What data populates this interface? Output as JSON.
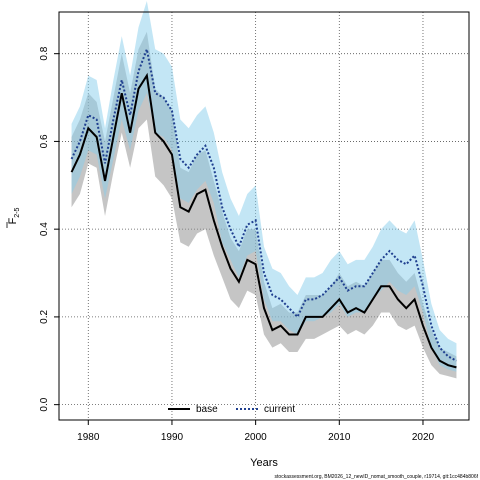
{
  "chart_data": {
    "type": "line",
    "xlabel": "Years",
    "ylabel_main": "F",
    "ylabel_sub": "2-5",
    "xlim": [
      1976.5,
      2025.5
    ],
    "ylim": [
      -0.035,
      0.895
    ],
    "xticks": [
      1980,
      1990,
      2000,
      2010,
      2020
    ],
    "yticks": [
      0.0,
      0.2,
      0.4,
      0.6,
      0.8
    ],
    "ytick_labels": [
      "0.0",
      "0.2",
      "0.4",
      "0.6",
      "0.8"
    ],
    "grid": true,
    "legend_position": "bottom",
    "years": [
      1978,
      1979,
      1980,
      1981,
      1982,
      1983,
      1984,
      1985,
      1986,
      1987,
      1988,
      1989,
      1990,
      1991,
      1992,
      1993,
      1994,
      1995,
      1996,
      1997,
      1998,
      1999,
      2000,
      2001,
      2002,
      2003,
      2004,
      2005,
      2006,
      2007,
      2008,
      2009,
      2010,
      2011,
      2012,
      2013,
      2014,
      2015,
      2016,
      2017,
      2018,
      2019,
      2020,
      2021,
      2022,
      2023,
      2024
    ],
    "series": [
      {
        "name": "base",
        "color": "#000000",
        "band_color": "#8c8c8c",
        "values": [
          0.53,
          0.57,
          0.63,
          0.61,
          0.51,
          0.61,
          0.71,
          0.62,
          0.72,
          0.75,
          0.62,
          0.6,
          0.57,
          0.45,
          0.44,
          0.48,
          0.49,
          0.42,
          0.36,
          0.31,
          0.28,
          0.33,
          0.32,
          0.22,
          0.17,
          0.18,
          0.16,
          0.16,
          0.2,
          0.2,
          0.2,
          0.22,
          0.24,
          0.21,
          0.22,
          0.21,
          0.24,
          0.27,
          0.27,
          0.24,
          0.22,
          0.24,
          0.18,
          0.13,
          0.1,
          0.09,
          0.085
        ],
        "lower": [
          0.45,
          0.48,
          0.55,
          0.54,
          0.43,
          0.53,
          0.62,
          0.54,
          0.63,
          0.65,
          0.52,
          0.5,
          0.47,
          0.37,
          0.36,
          0.39,
          0.4,
          0.34,
          0.29,
          0.24,
          0.22,
          0.26,
          0.25,
          0.16,
          0.13,
          0.14,
          0.12,
          0.12,
          0.15,
          0.15,
          0.16,
          0.17,
          0.18,
          0.16,
          0.17,
          0.16,
          0.18,
          0.21,
          0.21,
          0.18,
          0.17,
          0.18,
          0.13,
          0.09,
          0.07,
          0.065,
          0.06
        ],
        "upper": [
          0.61,
          0.65,
          0.71,
          0.69,
          0.6,
          0.7,
          0.8,
          0.71,
          0.81,
          0.85,
          0.72,
          0.7,
          0.67,
          0.54,
          0.53,
          0.57,
          0.58,
          0.51,
          0.44,
          0.38,
          0.35,
          0.4,
          0.4,
          0.28,
          0.22,
          0.23,
          0.21,
          0.21,
          0.25,
          0.25,
          0.25,
          0.27,
          0.3,
          0.27,
          0.28,
          0.27,
          0.3,
          0.33,
          0.33,
          0.3,
          0.28,
          0.3,
          0.23,
          0.17,
          0.13,
          0.12,
          0.11
        ]
      },
      {
        "name": "current",
        "color": "#1f3f8f",
        "band_color": "#87ceeb",
        "values": [
          0.56,
          0.6,
          0.66,
          0.65,
          0.55,
          0.65,
          0.74,
          0.66,
          0.76,
          0.81,
          0.71,
          0.7,
          0.67,
          0.56,
          0.54,
          0.57,
          0.59,
          0.54,
          0.45,
          0.4,
          0.36,
          0.41,
          0.42,
          0.3,
          0.25,
          0.24,
          0.22,
          0.2,
          0.24,
          0.24,
          0.25,
          0.27,
          0.29,
          0.26,
          0.27,
          0.27,
          0.3,
          0.33,
          0.35,
          0.33,
          0.32,
          0.34,
          0.27,
          0.18,
          0.13,
          0.11,
          0.1
        ],
        "lower": [
          0.48,
          0.52,
          0.58,
          0.57,
          0.47,
          0.56,
          0.65,
          0.58,
          0.67,
          0.71,
          0.62,
          0.61,
          0.58,
          0.47,
          0.46,
          0.49,
          0.51,
          0.46,
          0.37,
          0.33,
          0.29,
          0.34,
          0.35,
          0.24,
          0.19,
          0.19,
          0.17,
          0.16,
          0.19,
          0.19,
          0.2,
          0.21,
          0.23,
          0.2,
          0.21,
          0.21,
          0.24,
          0.26,
          0.28,
          0.26,
          0.25,
          0.27,
          0.21,
          0.13,
          0.09,
          0.08,
          0.075
        ],
        "upper": [
          0.64,
          0.68,
          0.75,
          0.74,
          0.63,
          0.74,
          0.84,
          0.75,
          0.86,
          0.92,
          0.81,
          0.8,
          0.77,
          0.65,
          0.63,
          0.66,
          0.68,
          0.62,
          0.53,
          0.47,
          0.43,
          0.48,
          0.5,
          0.36,
          0.31,
          0.3,
          0.27,
          0.25,
          0.29,
          0.29,
          0.3,
          0.33,
          0.35,
          0.32,
          0.33,
          0.33,
          0.36,
          0.4,
          0.42,
          0.4,
          0.39,
          0.42,
          0.33,
          0.23,
          0.17,
          0.15,
          0.14
        ]
      }
    ]
  },
  "footnote": "stockassessment.org, BM2026_12_newID_nomat_smooth_couple, r19714, git:1cc484b806f"
}
